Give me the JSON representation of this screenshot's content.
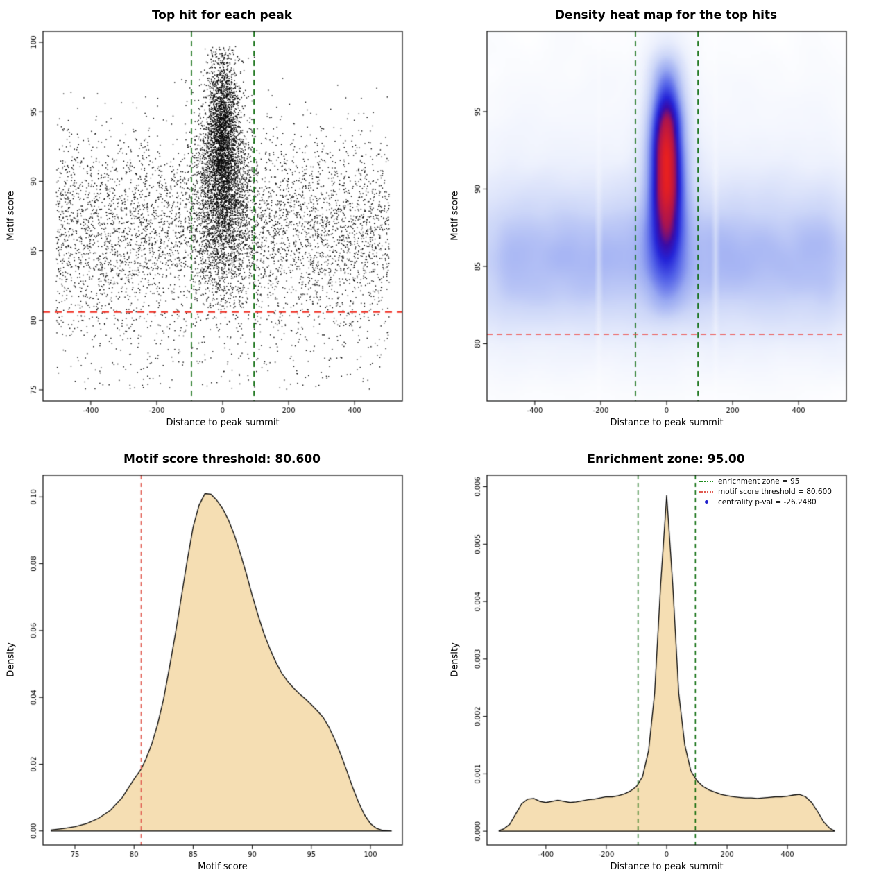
{
  "page_background": "#ffffff",
  "chart_data": [
    {
      "type": "scatter",
      "title": "Top hit for each peak",
      "xlabel": "Distance to peak summit",
      "ylabel": "Motif score",
      "xlim": [
        -545,
        545
      ],
      "ylim": [
        74.2,
        100.8
      ],
      "xticks": [
        -400,
        -200,
        0,
        200,
        400
      ],
      "yticks": [
        75,
        80,
        85,
        90,
        95,
        100
      ],
      "xtick_labels": [
        "-400",
        "-200",
        "0",
        "200",
        "400"
      ],
      "ytick_labels": [
        "75",
        "80",
        "85",
        "90",
        "95",
        "100"
      ],
      "point_color": "#000000",
      "enrichment_zone_x": [
        -95,
        95
      ],
      "enrichment_zone_color": "#006400",
      "score_threshold_y": 80.6,
      "score_threshold_color": "#f02d20",
      "seed": 17,
      "clusters": [
        {
          "n": 5200,
          "x": {
            "dist": "uniform",
            "min": -505,
            "max": 505
          },
          "y": {
            "dist": "normal",
            "mean": 86.4,
            "sd": 3.6,
            "min": 75.2,
            "max": 97.5
          }
        },
        {
          "n": 3000,
          "x": {
            "dist": "normal",
            "mean": 0,
            "sd": 42,
            "min": -500,
            "max": 500
          },
          "y": {
            "dist": "normal",
            "mean": 89.5,
            "sd": 3.8,
            "min": 81,
            "max": 99
          }
        },
        {
          "n": 2200,
          "x": {
            "dist": "normal",
            "mean": 0,
            "sd": 22,
            "min": -300,
            "max": 300
          },
          "y": {
            "dist": "normal",
            "mean": 93.5,
            "sd": 3.2,
            "min": 84,
            "max": 99.7
          }
        },
        {
          "n": 220,
          "x": {
            "dist": "uniform",
            "min": -505,
            "max": 505
          },
          "y": {
            "dist": "uniform",
            "min": 75,
            "max": 80.5
          }
        }
      ]
    },
    {
      "type": "heatmap",
      "title": "Density heat map for the top hits",
      "xlabel": "Distance to peak summit",
      "ylabel": "Motif score",
      "xlim": [
        -545,
        545
      ],
      "ylim": [
        76.3,
        100.2
      ],
      "xticks": [
        -400,
        -200,
        0,
        200,
        400
      ],
      "yticks": [
        80,
        85,
        90,
        95
      ],
      "xtick_labels": [
        "-400",
        "-200",
        "0",
        "200",
        "400"
      ],
      "ytick_labels": [
        "80",
        "85",
        "90",
        "95"
      ],
      "enrichment_zone_x": [
        -95,
        95
      ],
      "enrichment_zone_color": "#006400",
      "score_threshold_y": 80.6,
      "score_threshold_color": "#f04038",
      "seed": 29,
      "grid_size": [
        150,
        120
      ],
      "blur_radius": 3,
      "blur_passes": 3,
      "gamma": 0.55,
      "white_streaks_x": [
        -212,
        148
      ],
      "color_stops": [
        [
          0,
          "#ffffff"
        ],
        [
          0.15,
          "#edf1fd"
        ],
        [
          0.32,
          "#ccd6f8"
        ],
        [
          0.48,
          "#9aaaf2"
        ],
        [
          0.62,
          "#5160e8"
        ],
        [
          0.72,
          "#2424d8"
        ],
        [
          0.8,
          "#3a0ca8"
        ],
        [
          0.88,
          "#aa1450"
        ],
        [
          1,
          "#e82020"
        ]
      ],
      "clusters": [
        {
          "n": 26000,
          "x": {
            "dist": "uniform",
            "min": -530,
            "max": 530
          },
          "y": {
            "dist": "normal",
            "mean": 85.4,
            "sd": 2.7,
            "min": 77.5,
            "max": 99
          }
        },
        {
          "n": 7000,
          "x": {
            "dist": "uniform",
            "min": -530,
            "max": 530
          },
          "y": {
            "dist": "normal",
            "mean": 87.5,
            "sd": 5.0,
            "min": 77,
            "max": 99.8
          }
        },
        {
          "n": 9000,
          "x": {
            "dist": "normal",
            "mean": 0,
            "sd": 32,
            "min": -200,
            "max": 200
          },
          "y": {
            "dist": "normal",
            "mean": 89.5,
            "sd": 4.5,
            "min": 82,
            "max": 99.8
          }
        },
        {
          "n": 7500,
          "x": {
            "dist": "normal",
            "mean": 0,
            "sd": 15,
            "min": -120,
            "max": 120
          },
          "y": {
            "dist": "normal",
            "mean": 92.5,
            "sd": 3.3,
            "min": 85.5,
            "max": 98.5
          }
        }
      ]
    },
    {
      "type": "density",
      "title": "Motif score threshold: 80.600",
      "xlabel": "Motif score",
      "ylabel": "Density",
      "xlim": [
        72.3,
        102.7
      ],
      "ylim": [
        -0.0042,
        0.1065
      ],
      "xticks": [
        75,
        80,
        85,
        90,
        95,
        100
      ],
      "yticks": [
        0,
        0.02,
        0.04,
        0.06,
        0.08,
        0.1
      ],
      "xtick_labels": [
        "75",
        "80",
        "85",
        "90",
        "95",
        "100"
      ],
      "ytick_labels": [
        "0.00",
        "0.02",
        "0.04",
        "0.06",
        "0.08",
        "0.10"
      ],
      "fill_color": "#f5deb3",
      "line_color": "#000000",
      "vlines": [
        {
          "x": 80.6,
          "color": "#e05a50"
        }
      ],
      "curve": {
        "x": [
          73.0,
          74.0,
          75.0,
          76.0,
          77.0,
          78.0,
          79.0,
          80.0,
          80.6,
          81.0,
          81.5,
          82.0,
          82.5,
          83.0,
          83.5,
          84.0,
          84.5,
          85.0,
          85.5,
          86.0,
          86.5,
          87.0,
          87.5,
          88.0,
          88.5,
          89.0,
          89.5,
          90.0,
          90.5,
          91.0,
          91.5,
          92.0,
          92.5,
          93.0,
          93.5,
          94.0,
          94.5,
          95.0,
          95.5,
          96.0,
          96.5,
          97.0,
          97.5,
          98.0,
          98.5,
          99.0,
          99.5,
          100.0,
          100.5,
          101.0,
          101.8
        ],
        "y": [
          0.0003,
          0.0007,
          0.0013,
          0.0022,
          0.0038,
          0.0062,
          0.01,
          0.0155,
          0.0185,
          0.0215,
          0.026,
          0.032,
          0.0395,
          0.049,
          0.059,
          0.07,
          0.081,
          0.091,
          0.0975,
          0.101,
          0.1008,
          0.099,
          0.0965,
          0.093,
          0.0885,
          0.083,
          0.077,
          0.0705,
          0.0645,
          0.059,
          0.0545,
          0.0505,
          0.0472,
          0.0448,
          0.0428,
          0.041,
          0.0395,
          0.0378,
          0.036,
          0.034,
          0.031,
          0.0272,
          0.0228,
          0.018,
          0.013,
          0.0085,
          0.0048,
          0.0022,
          0.0008,
          0.0002,
          0.0
        ]
      }
    },
    {
      "type": "density",
      "title": "Enrichment zone: 95.00",
      "xlabel": "Distance to peak summit",
      "ylabel": "Density",
      "xlim": [
        -595,
        595
      ],
      "ylim": [
        -0.00024,
        0.0062
      ],
      "xticks": [
        -400,
        -200,
        0,
        200,
        400
      ],
      "yticks": [
        0,
        0.001,
        0.002,
        0.003,
        0.004,
        0.005,
        0.006
      ],
      "xtick_labels": [
        "-400",
        "-200",
        "0",
        "200",
        "400"
      ],
      "ytick_labels": [
        "0.000",
        "0.001",
        "0.002",
        "0.003",
        "0.004",
        "0.005",
        "0.006"
      ],
      "fill_color": "#f5deb3",
      "line_color": "#000000",
      "vlines": [
        {
          "x": -95,
          "color": "#006400"
        },
        {
          "x": 95,
          "color": "#006400"
        }
      ],
      "curve": {
        "x": [
          -555,
          -540,
          -520,
          -500,
          -480,
          -460,
          -440,
          -420,
          -400,
          -380,
          -360,
          -340,
          -320,
          -300,
          -280,
          -260,
          -240,
          -220,
          -200,
          -180,
          -160,
          -140,
          -120,
          -100,
          -80,
          -60,
          -40,
          -20,
          0,
          20,
          40,
          60,
          80,
          100,
          120,
          140,
          160,
          180,
          200,
          220,
          240,
          260,
          280,
          300,
          320,
          340,
          360,
          380,
          400,
          420,
          440,
          460,
          480,
          500,
          520,
          540,
          555
        ],
        "y": [
          1e-05,
          4e-05,
          0.00012,
          0.0003,
          0.00048,
          0.00056,
          0.00057,
          0.00052,
          0.0005,
          0.00052,
          0.00054,
          0.00052,
          0.0005,
          0.00051,
          0.00053,
          0.00055,
          0.00056,
          0.00058,
          0.0006,
          0.0006,
          0.00062,
          0.00065,
          0.0007,
          0.00078,
          0.00095,
          0.0014,
          0.0024,
          0.0043,
          0.00585,
          0.0043,
          0.0024,
          0.0015,
          0.00105,
          0.00088,
          0.00078,
          0.00072,
          0.00068,
          0.00064,
          0.00062,
          0.0006,
          0.00059,
          0.00058,
          0.00058,
          0.00057,
          0.00058,
          0.00059,
          0.0006,
          0.0006,
          0.00061,
          0.00063,
          0.00064,
          0.0006,
          0.0005,
          0.00034,
          0.00016,
          5e-05,
          1e-05
        ]
      },
      "legend": [
        {
          "label": "enrichment zone = 95",
          "color": "#1e8c1e",
          "marker": "dotted-line"
        },
        {
          "label": "motif score threshold = 80.600",
          "color": "#e05a50",
          "marker": "dotted-line"
        },
        {
          "label": "centrality p-val = -26.2480",
          "color": "#2020cc",
          "marker": "point"
        }
      ]
    }
  ]
}
